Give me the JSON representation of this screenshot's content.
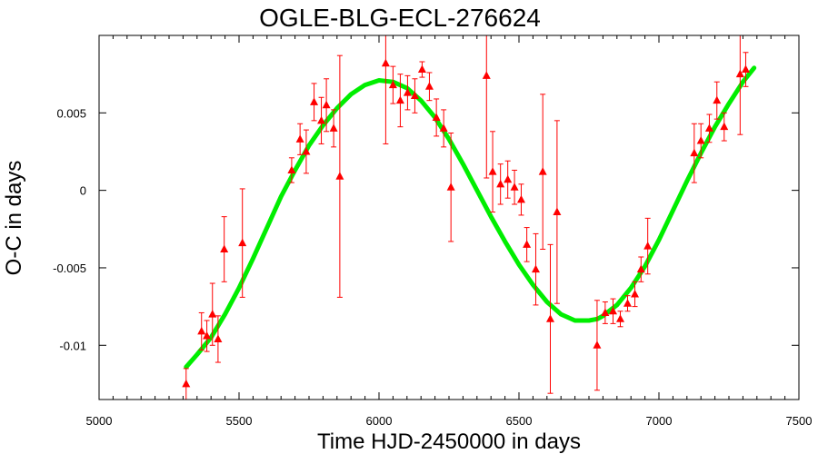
{
  "chart_data": {
    "type": "scatter",
    "title": "OGLE-BLG-ECL-276624",
    "xlabel": "Time HJD-2450000 in days",
    "ylabel": "O-C in days",
    "xlim": [
      5000,
      7500
    ],
    "ylim": [
      -0.0135,
      0.01
    ],
    "xticks": [
      5000,
      5500,
      6000,
      6500,
      7000,
      7500
    ],
    "xtick_labels": [
      "5000",
      "5500",
      "6000",
      "6500",
      "7000",
      "7500"
    ],
    "yticks": [
      -0.01,
      -0.005,
      0,
      0.005
    ],
    "ytick_labels": [
      "-0.01",
      "-0.005",
      "0",
      "0.005"
    ],
    "grid": false,
    "series": [
      {
        "kind": "points_with_errorbars",
        "color": "#ff0000",
        "marker": "triangle",
        "x": [
          5311,
          5366,
          5385,
          5405,
          5425,
          5447,
          5512,
          5688,
          5718,
          5740,
          5768,
          5794,
          5812,
          5838,
          5860,
          6024,
          6050,
          6076,
          6102,
          6128,
          6154,
          6180,
          6205,
          6231,
          6257,
          6384,
          6406,
          6434,
          6460,
          6484,
          6508,
          6528,
          6560,
          6585,
          6612,
          6636,
          6779,
          6808,
          6836,
          6862,
          6888,
          6914,
          6936,
          6960,
          7126,
          7150,
          7180,
          7207,
          7233,
          7290,
          7310
        ],
        "y": [
          -0.0125,
          -0.0091,
          -0.0094,
          -0.008,
          -0.0096,
          -0.0038,
          -0.0034,
          0.0013,
          0.0033,
          0.0025,
          0.0057,
          0.0045,
          0.0055,
          0.004,
          0.0009,
          0.0082,
          0.0068,
          0.0058,
          0.0063,
          0.0061,
          0.0078,
          0.0067,
          0.0047,
          0.004,
          0.0002,
          0.0074,
          0.0012,
          0.0004,
          0.0007,
          0.0002,
          -0.0006,
          -0.0035,
          -0.0051,
          0.0012,
          -0.0083,
          -0.0014,
          -0.01,
          -0.0079,
          -0.0078,
          -0.0083,
          -0.0073,
          -0.0067,
          -0.0051,
          -0.0036,
          0.0024,
          0.0032,
          0.004,
          0.0058,
          0.0041,
          0.0075,
          0.0078
        ],
        "yerr": [
          0.001,
          0.0012,
          0.001,
          0.002,
          0.0015,
          0.0021,
          0.0035,
          0.0008,
          0.001,
          0.0014,
          0.0012,
          0.0015,
          0.0017,
          0.0012,
          0.0078,
          0.0052,
          0.0012,
          0.0017,
          0.0011,
          0.0011,
          0.0005,
          0.0009,
          0.0012,
          0.0012,
          0.0035,
          0.0066,
          0.0026,
          0.0013,
          0.0012,
          0.0011,
          0.001,
          0.0011,
          0.0023,
          0.005,
          0.0048,
          0.0059,
          0.0029,
          0.0007,
          0.0008,
          0.0005,
          0.0005,
          0.0008,
          0.0008,
          0.0018,
          0.0019,
          0.0011,
          0.0009,
          0.0012,
          0.0009,
          0.0039,
          0.0011
        ]
      },
      {
        "kind": "fit_curve",
        "color": "#00ee00",
        "x": [
          5311,
          5350,
          5400,
          5450,
          5500,
          5550,
          5600,
          5650,
          5700,
          5750,
          5800,
          5850,
          5900,
          5950,
          6000,
          6050,
          6100,
          6150,
          6200,
          6250,
          6300,
          6350,
          6400,
          6450,
          6500,
          6550,
          6600,
          6650,
          6700,
          6750,
          6780,
          6800,
          6850,
          6900,
          6950,
          7000,
          7050,
          7100,
          7150,
          7200,
          7250,
          7300,
          7340
        ],
        "y": [
          -0.0114,
          -0.0106,
          -0.0095,
          -0.008,
          -0.0063,
          -0.0044,
          -0.0024,
          -0.0004,
          0.0013,
          0.0029,
          0.0042,
          0.0053,
          0.0062,
          0.0068,
          0.0071,
          0.007,
          0.0066,
          0.0058,
          0.0047,
          0.0033,
          0.0017,
          0.0,
          -0.0017,
          -0.0033,
          -0.0048,
          -0.0061,
          -0.0072,
          -0.008,
          -0.0084,
          -0.0084,
          -0.0083,
          -0.0081,
          -0.0074,
          -0.0063,
          -0.0049,
          -0.0032,
          -0.0013,
          0.0006,
          0.0024,
          0.0041,
          0.0056,
          0.007,
          0.0079
        ]
      }
    ]
  }
}
